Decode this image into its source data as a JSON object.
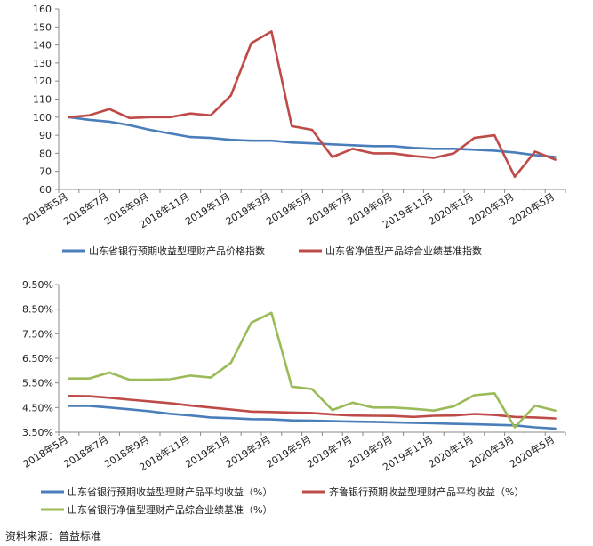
{
  "source_note": "资料来源：普益标准",
  "chart_data": [
    {
      "type": "line",
      "title": "",
      "ylim": [
        60,
        160
      ],
      "yticks": [
        "60",
        "70",
        "80",
        "90",
        "100",
        "110",
        "120",
        "130",
        "140",
        "150",
        "160"
      ],
      "ytick_values": [
        60,
        70,
        80,
        90,
        100,
        110,
        120,
        130,
        140,
        150,
        160
      ],
      "x": [
        "2018年5月",
        "2018年6月",
        "2018年7月",
        "2018年8月",
        "2018年9月",
        "2018年10月",
        "2018年11月",
        "2018年12月",
        "2019年1月",
        "2019年2月",
        "2019年3月",
        "2019年4月",
        "2019年5月",
        "2019年6月",
        "2019年7月",
        "2019年8月",
        "2019年9月",
        "2019年10月",
        "2019年11月",
        "2019年12月",
        "2020年1月",
        "2020年2月",
        "2020年3月",
        "2020年4月",
        "2020年5月"
      ],
      "xtick_labels": [
        "2018年5月",
        "2018年7月",
        "2018年9月",
        "2018年11月",
        "2019年1月",
        "2019年3月",
        "2019年5月",
        "2019年7月",
        "2019年9月",
        "2019年11月",
        "2020年1月",
        "2020年3月",
        "2020年5月"
      ],
      "series": [
        {
          "name": "山东省银行预期收益型理财产品价格指数",
          "color": "#4a7ebb",
          "values": [
            100,
            98.5,
            97.5,
            95.5,
            93,
            91,
            89,
            88.5,
            87.5,
            87,
            87,
            86,
            85.5,
            85,
            84.5,
            84,
            84,
            83,
            82.5,
            82.5,
            82,
            81.5,
            80.5,
            79,
            78
          ]
        },
        {
          "name": "山东省净值型产品综合业绩基准指数",
          "color": "#be4b48",
          "values": [
            100,
            101,
            104.5,
            99.5,
            100,
            100,
            102,
            101,
            112,
            141,
            147.5,
            95,
            93,
            78,
            82.5,
            80,
            80,
            78.5,
            77.5,
            80,
            88.5,
            90,
            67,
            81,
            76.5
          ]
        }
      ]
    },
    {
      "type": "line",
      "title": "",
      "ylim": [
        3.5,
        9.5
      ],
      "yticks": [
        "3.50%",
        "4.50%",
        "5.50%",
        "6.50%",
        "7.50%",
        "8.50%",
        "9.50%"
      ],
      "ytick_values": [
        3.5,
        4.5,
        5.5,
        6.5,
        7.5,
        8.5,
        9.5
      ],
      "x": [
        "2018年5月",
        "2018年6月",
        "2018年7月",
        "2018年8月",
        "2018年9月",
        "2018年10月",
        "2018年11月",
        "2018年12月",
        "2019年1月",
        "2019年2月",
        "2019年3月",
        "2019年4月",
        "2019年5月",
        "2019年6月",
        "2019年7月",
        "2019年8月",
        "2019年9月",
        "2019年10月",
        "2019年11月",
        "2019年12月",
        "2020年1月",
        "2020年2月",
        "2020年3月",
        "2020年4月",
        "2020年5月"
      ],
      "xtick_labels": [
        "2018年5月",
        "2018年7月",
        "2018年9月",
        "2018年11月",
        "2019年1月",
        "2019年3月",
        "2019年5月",
        "2019年7月",
        "2019年9月",
        "2019年11月",
        "2020年1月",
        "2020年3月",
        "2020年5月"
      ],
      "series": [
        {
          "name": "山东省银行预期收益型理财产品平均收益（%）",
          "color": "#4a7ebb",
          "values": [
            4.57,
            4.57,
            4.5,
            4.43,
            4.35,
            4.25,
            4.18,
            4.1,
            4.07,
            4.03,
            4.02,
            3.98,
            3.97,
            3.95,
            3.93,
            3.92,
            3.9,
            3.88,
            3.86,
            3.84,
            3.82,
            3.8,
            3.78,
            3.7,
            3.65
          ]
        },
        {
          "name": "齐鲁银行预期收益型理财产品平均收益（%）",
          "color": "#be4b48",
          "values": [
            4.97,
            4.96,
            4.9,
            4.82,
            4.75,
            4.68,
            4.58,
            4.5,
            4.42,
            4.34,
            4.32,
            4.3,
            4.28,
            4.22,
            4.18,
            4.17,
            4.16,
            4.12,
            4.17,
            4.18,
            4.24,
            4.2,
            4.12,
            4.1,
            4.06
          ]
        },
        {
          "name": "山东省银行净值型理财产品综合业绩基准（%）",
          "color": "#9bbb59",
          "values": [
            5.68,
            5.68,
            5.92,
            5.63,
            5.63,
            5.65,
            5.8,
            5.72,
            6.32,
            7.95,
            8.35,
            5.35,
            5.25,
            4.4,
            4.7,
            4.5,
            4.5,
            4.45,
            4.38,
            4.55,
            5.0,
            5.08,
            3.7,
            4.58,
            4.38
          ]
        }
      ]
    }
  ]
}
